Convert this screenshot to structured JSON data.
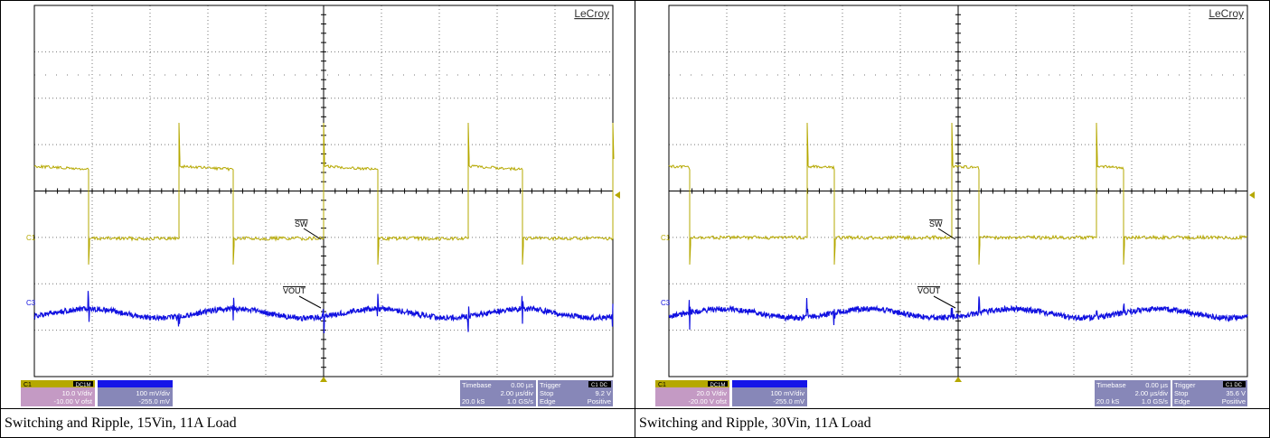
{
  "panels": [
    {
      "brand": "LeCroy",
      "sw_label": "SW",
      "vout_label": "VOUT",
      "c1": "C1",
      "c3": "C3",
      "ch1": {
        "name": "C1",
        "coupling": "DC1M",
        "scale": "10.0 V/div",
        "offset": "-10.00 V ofst"
      },
      "ch3": {
        "scale": "100 mV/div",
        "offset": "-255.0 mV"
      },
      "timebase": {
        "label": "Timebase",
        "delay": "0.00 µs",
        "scale": "2.00 µs/div",
        "samples": "20.0 kS",
        "rate": "1.0 GS/s"
      },
      "trigger": {
        "label": "Trigger",
        "source": "C1 DC",
        "mode": "Stop",
        "level": "9.2 V",
        "type": "Edge",
        "slope": "Positive"
      },
      "caption": "Switching and Ripple, 15Vin, 11A Load"
    },
    {
      "brand": "LeCroy",
      "sw_label": "SW",
      "vout_label": "VOUT",
      "c1": "C1",
      "c3": "C3",
      "ch1": {
        "name": "C1",
        "coupling": "DC1M",
        "scale": "20.0 V/div",
        "offset": "-20.00 V ofst"
      },
      "ch3": {
        "scale": "100 mV/div",
        "offset": "-255.0 mV"
      },
      "timebase": {
        "label": "Timebase",
        "delay": "0.00 µs",
        "scale": "2.00 µs/div",
        "samples": "20.0 kS",
        "rate": "1.0 GS/s"
      },
      "trigger": {
        "label": "Trigger",
        "source": "C1 DC",
        "mode": "Stop",
        "level": "35.6 V",
        "type": "Edge",
        "slope": "Positive"
      },
      "caption": "Switching and Ripple, 30Vin, 11A Load"
    }
  ]
}
